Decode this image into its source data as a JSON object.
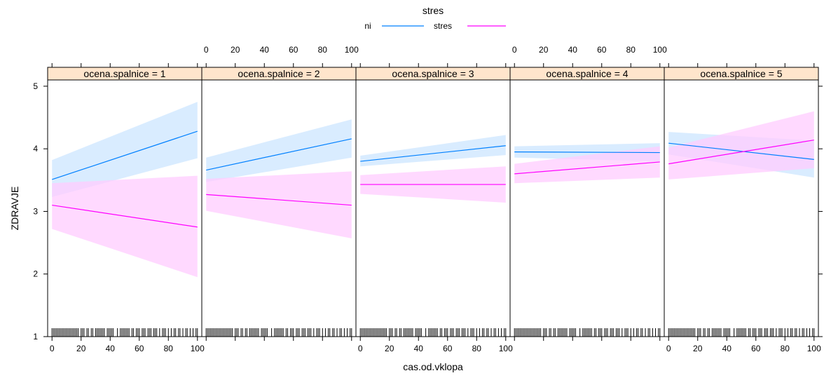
{
  "chart_data": {
    "type": "line",
    "xlabel": "cas.od.vklopa",
    "ylabel": "ZDRAVJE",
    "xlim": [
      -3,
      103
    ],
    "ylim": [
      1,
      5.1
    ],
    "x_ticks": [
      0,
      20,
      40,
      60,
      80,
      100
    ],
    "y_ticks": [
      1,
      2,
      3,
      4,
      5
    ],
    "legend": {
      "title": "stres",
      "placement": "top",
      "entries": [
        {
          "label": "ni",
          "color": "#0080ff"
        },
        {
          "label": "stres",
          "color": "#ff00ff"
        }
      ]
    },
    "band_colors": {
      "ni": "#cce6ff",
      "stres": "#ffccff"
    },
    "panels": [
      {
        "label": "ocena.spalnice = 1",
        "series": [
          {
            "key": "ni",
            "x": [
              0,
              100
            ],
            "fit": [
              3.51,
              4.28
            ],
            "lower": [
              3.23,
              3.85
            ],
            "upper": [
              3.82,
              4.75
            ]
          },
          {
            "key": "stres",
            "x": [
              0,
              100
            ],
            "fit": [
              3.1,
              2.75
            ],
            "lower": [
              2.72,
              1.95
            ],
            "upper": [
              3.45,
              3.57
            ]
          }
        ]
      },
      {
        "label": "ocena.spalnice = 2",
        "series": [
          {
            "key": "ni",
            "x": [
              0,
              100
            ],
            "fit": [
              3.66,
              4.16
            ],
            "lower": [
              3.47,
              3.86
            ],
            "upper": [
              3.86,
              4.47
            ]
          },
          {
            "key": "stres",
            "x": [
              0,
              100
            ],
            "fit": [
              3.27,
              3.1
            ],
            "lower": [
              3.01,
              2.57
            ],
            "upper": [
              3.52,
              3.64
            ]
          }
        ]
      },
      {
        "label": "ocena.spalnice = 3",
        "series": [
          {
            "key": "ni",
            "x": [
              0,
              100
            ],
            "fit": [
              3.8,
              4.05
            ],
            "lower": [
              3.72,
              3.9
            ],
            "upper": [
              3.89,
              4.22
            ]
          },
          {
            "key": "stres",
            "x": [
              0,
              100
            ],
            "fit": [
              3.43,
              3.43
            ],
            "lower": [
              3.28,
              3.14
            ],
            "upper": [
              3.58,
              3.72
            ]
          }
        ]
      },
      {
        "label": "ocena.spalnice = 4",
        "series": [
          {
            "key": "ni",
            "x": [
              0,
              100
            ],
            "fit": [
              3.95,
              3.94
            ],
            "lower": [
              3.86,
              3.8
            ],
            "upper": [
              4.04,
              4.09
            ]
          },
          {
            "key": "stres",
            "x": [
              0,
              100
            ],
            "fit": [
              3.6,
              3.79
            ],
            "lower": [
              3.45,
              3.54
            ],
            "upper": [
              3.76,
              4.04
            ]
          }
        ]
      },
      {
        "label": "ocena.spalnice = 5",
        "series": [
          {
            "key": "ni",
            "x": [
              0,
              100
            ],
            "fit": [
              4.09,
              3.83
            ],
            "lower": [
              3.91,
              3.54
            ],
            "upper": [
              4.27,
              4.13
            ]
          },
          {
            "key": "stres",
            "x": [
              0,
              100
            ],
            "fit": [
              3.76,
              4.14
            ],
            "lower": [
              3.51,
              3.69
            ],
            "upper": [
              4.02,
              4.6
            ]
          }
        ]
      }
    ],
    "rug_x": [
      0,
      1,
      2,
      3,
      4,
      5,
      6,
      7,
      8,
      9,
      10,
      11,
      12,
      13,
      14,
      15,
      16,
      17,
      18,
      20,
      21,
      22,
      24,
      25,
      27,
      28,
      30,
      31,
      32,
      33,
      34,
      35,
      36,
      38,
      39,
      40,
      41,
      42,
      45,
      47,
      48,
      49,
      50,
      51,
      52,
      53,
      55,
      56,
      58,
      59,
      60,
      62,
      63,
      64,
      66,
      67,
      68,
      70,
      71,
      72,
      74,
      76,
      77,
      78,
      80,
      82,
      84,
      85,
      87,
      88,
      90,
      92,
      93,
      95,
      97,
      99,
      100
    ]
  }
}
